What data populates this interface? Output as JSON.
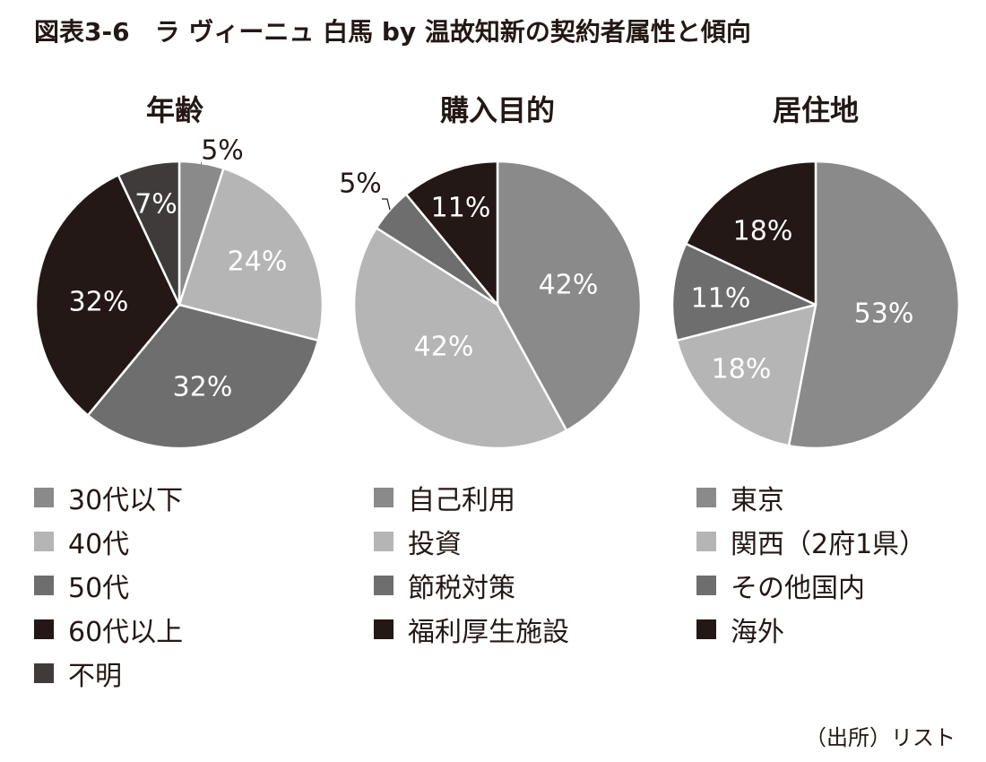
{
  "figure_title": "図表3-6　ラ ヴィーニュ 白馬 by 温故知新の契約者属性と傾向",
  "source_note": "（出所）リスト",
  "colors": {
    "mid_gray": "#8a8a8a",
    "light_gray": "#b5b5b5",
    "dark_gray": "#6e6e6e",
    "black": "#231815",
    "charcoal": "#403b3b"
  },
  "chart_data": [
    {
      "type": "pie",
      "title": "年齢",
      "labels": [
        "30代以下",
        "40代",
        "50代",
        "60代以上",
        "不明"
      ],
      "values": [
        5,
        24,
        32,
        32,
        7
      ],
      "value_labels": [
        "5%",
        "24%",
        "32%",
        "32%",
        "7%"
      ],
      "colors": [
        "#8a8a8a",
        "#b5b5b5",
        "#6e6e6e",
        "#231815",
        "#403b3b"
      ],
      "start": "12 o'clock, clockwise",
      "legend": "bottom"
    },
    {
      "type": "pie",
      "title": "購入目的",
      "labels": [
        "自己利用",
        "投資",
        "節税対策",
        "福利厚生施設"
      ],
      "values": [
        42,
        42,
        5,
        11
      ],
      "value_labels": [
        "42%",
        "42%",
        "5%",
        "11%"
      ],
      "colors": [
        "#8a8a8a",
        "#b5b5b5",
        "#6e6e6e",
        "#231815"
      ],
      "start": "12 o'clock, clockwise",
      "legend": "bottom"
    },
    {
      "type": "pie",
      "title": "居住地",
      "labels": [
        "東京",
        "関西（2府1県）",
        "その他国内",
        "海外"
      ],
      "values": [
        53,
        18,
        11,
        18
      ],
      "value_labels": [
        "53%",
        "18%",
        "11%",
        "18%"
      ],
      "colors": [
        "#8a8a8a",
        "#b5b5b5",
        "#6e6e6e",
        "#231815"
      ],
      "start": "12 o'clock, clockwise",
      "legend": "bottom"
    }
  ]
}
